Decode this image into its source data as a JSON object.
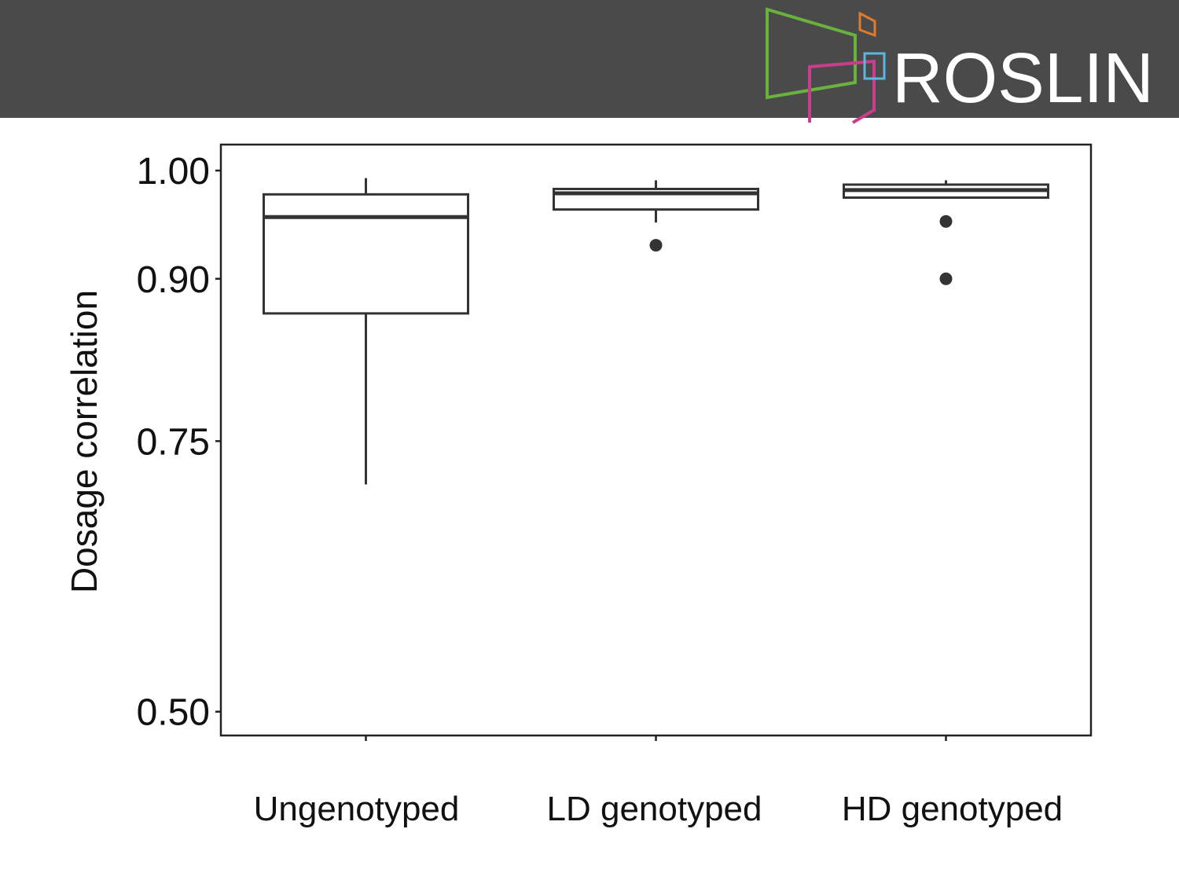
{
  "header": {
    "logo_text": "ROSLIN"
  },
  "chart_data": {
    "type": "box",
    "y_label": "Dosage correlation",
    "categories": [
      "Ungenotyped",
      "LD genotyped",
      "HD genotyped"
    ],
    "boxes": [
      {
        "min": 0.71,
        "q1": 0.868,
        "median": 0.957,
        "q3": 0.978,
        "max": 0.993,
        "outliers": []
      },
      {
        "min": 0.952,
        "q1": 0.964,
        "median": 0.979,
        "q3": 0.983,
        "max": 0.991,
        "outliers": [
          0.931
        ]
      },
      {
        "min": 0.975,
        "q1": 0.975,
        "median": 0.982,
        "q3": 0.987,
        "max": 0.991,
        "outliers": [
          0.953,
          0.9
        ]
      }
    ],
    "color": "#333333",
    "ylim": [
      0.478,
      1.024
    ],
    "yticks": [
      {
        "value": 0.5,
        "label": "0.50"
      },
      0.75,
      {
        "value": 0.9,
        "label": "0.90"
      },
      {
        "value": 1,
        "label": "1.00"
      }
    ]
  }
}
